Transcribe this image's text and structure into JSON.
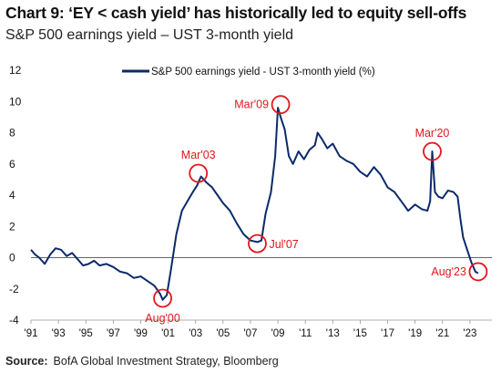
{
  "header": {
    "title": "Chart 9: ‘EY < cash yield’ has historically led to equity sell-offs",
    "subtitle": "S&P 500 earnings yield – UST 3-month yield"
  },
  "footer": {
    "source_label": "Source:",
    "source_text": "BofA Global Investment Strategy, Bloomberg"
  },
  "colors": {
    "line": "#0b2a6b",
    "annotation": "#e0161c",
    "zero_line": "#666666",
    "text": "#111111"
  },
  "chart_data": {
    "type": "line",
    "title": "Chart 9: ‘EY < cash yield’ has historically led to equity sell-offs",
    "subtitle": "S&P 500 earnings yield – UST 3-month yield",
    "xlabel": "",
    "ylabel": "",
    "xlim": [
      1991.0,
      2024.6
    ],
    "ylim": [
      -4,
      12
    ],
    "yticks": [
      -4,
      -2,
      0,
      2,
      4,
      6,
      8,
      10,
      12
    ],
    "xticks": [
      {
        "label": "'91",
        "x": 1991
      },
      {
        "label": "'93",
        "x": 1993
      },
      {
        "label": "'95",
        "x": 1995
      },
      {
        "label": "'97",
        "x": 1997
      },
      {
        "label": "'99",
        "x": 1999
      },
      {
        "label": "'01",
        "x": 2001
      },
      {
        "label": "'03",
        "x": 2003
      },
      {
        "label": "'05",
        "x": 2005
      },
      {
        "label": "'07",
        "x": 2007
      },
      {
        "label": "'09",
        "x": 2009
      },
      {
        "label": "'11",
        "x": 2011
      },
      {
        "label": "'13",
        "x": 2013
      },
      {
        "label": "'15",
        "x": 2015
      },
      {
        "label": "'17",
        "x": 2017
      },
      {
        "label": "'19",
        "x": 2019
      },
      {
        "label": "'21",
        "x": 2021
      },
      {
        "label": "'23",
        "x": 2023
      }
    ],
    "grid": false,
    "legend_position": "top",
    "series": [
      {
        "name": "S&P 500 earnings yield - UST 3-month yield (%)",
        "x": [
          1991.0,
          1991.3,
          1991.6,
          1992.0,
          1992.4,
          1992.8,
          1993.2,
          1993.6,
          1994.0,
          1994.4,
          1994.8,
          1995.2,
          1995.6,
          1996.0,
          1996.5,
          1997.0,
          1997.5,
          1998.0,
          1998.5,
          1999.0,
          1999.5,
          2000.0,
          2000.4,
          2000.6,
          2000.9,
          2001.2,
          2001.6,
          2002.0,
          2002.4,
          2002.8,
          2003.1,
          2003.4,
          2003.8,
          2004.2,
          2004.6,
          2005.0,
          2005.5,
          2006.0,
          2006.5,
          2007.0,
          2007.5,
          2007.8,
          2008.1,
          2008.5,
          2008.8,
          2009.0,
          2009.2,
          2009.5,
          2009.8,
          2010.1,
          2010.5,
          2010.9,
          2011.3,
          2011.7,
          2011.9,
          2012.2,
          2012.6,
          2013.0,
          2013.5,
          2014.0,
          2014.5,
          2015.0,
          2015.5,
          2016.0,
          2016.5,
          2017.0,
          2017.5,
          2018.0,
          2018.5,
          2019.0,
          2019.5,
          2019.9,
          2020.1,
          2020.25,
          2020.45,
          2020.7,
          2021.0,
          2021.4,
          2021.8,
          2022.1,
          2022.3,
          2022.5,
          2022.8,
          2023.1,
          2023.4,
          2023.6
        ],
        "values": [
          0.5,
          0.2,
          0.0,
          -0.4,
          0.2,
          0.6,
          0.5,
          0.1,
          0.3,
          -0.1,
          -0.5,
          -0.4,
          -0.2,
          -0.5,
          -0.4,
          -0.6,
          -0.9,
          -1.0,
          -1.3,
          -1.2,
          -1.5,
          -1.8,
          -2.3,
          -2.7,
          -2.4,
          -0.8,
          1.5,
          3.0,
          3.6,
          4.2,
          4.6,
          5.2,
          4.8,
          4.5,
          4.0,
          3.5,
          3.0,
          2.2,
          1.5,
          1.1,
          1.0,
          1.1,
          2.8,
          4.2,
          6.5,
          9.6,
          9.0,
          8.2,
          6.5,
          6.0,
          6.8,
          6.3,
          6.9,
          7.2,
          8.0,
          7.6,
          7.0,
          7.3,
          6.5,
          6.2,
          6.0,
          5.5,
          5.2,
          5.8,
          5.3,
          4.5,
          4.2,
          3.6,
          3.0,
          3.4,
          3.1,
          3.0,
          3.6,
          6.8,
          4.2,
          3.9,
          3.8,
          4.3,
          4.2,
          3.9,
          2.5,
          1.3,
          0.5,
          -0.3,
          -0.9,
          -1.0
        ]
      }
    ],
    "annotations": [
      {
        "label": "Aug'00",
        "x": 2000.6,
        "y": -2.6,
        "label_position": "below"
      },
      {
        "label": "Mar'03",
        "x": 2003.2,
        "y": 5.4,
        "label_position": "above"
      },
      {
        "label": "Jul'07",
        "x": 2007.5,
        "y": 0.9,
        "label_position": "right"
      },
      {
        "label": "Mar'09",
        "x": 2009.2,
        "y": 9.8,
        "label_position": "left"
      },
      {
        "label": "Mar'20",
        "x": 2020.25,
        "y": 6.8,
        "label_position": "above"
      },
      {
        "label": "Aug'23",
        "x": 2023.6,
        "y": -0.9,
        "label_position": "left"
      }
    ]
  }
}
